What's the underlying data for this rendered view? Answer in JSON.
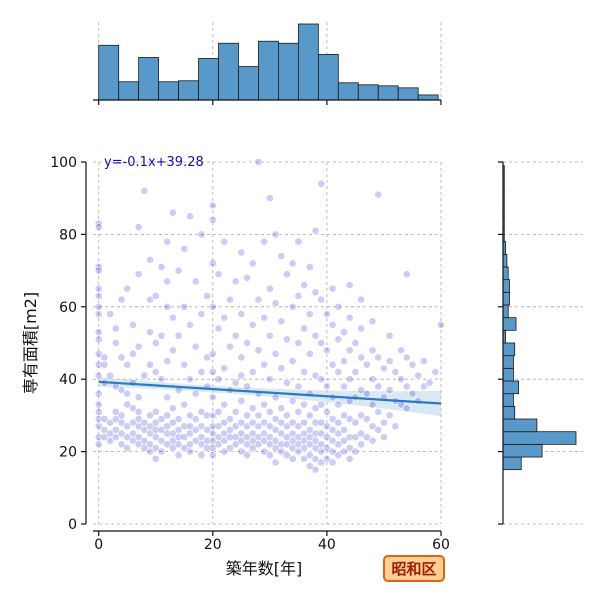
{
  "badge": {
    "label": "昭和区"
  },
  "colors": {
    "bar_fill": "#5899c9",
    "bar_edge": "#1a1a1a",
    "point_fill": "#0000cc",
    "regression_line": "#2b7bbf",
    "confidence_band": "#b9d6ea",
    "equation_text": "#1111aa",
    "badge_fill": "#ffd08f",
    "badge_border": "#e0601c",
    "badge_text": "#a01c0a"
  },
  "chart_data": {
    "type": "scatter",
    "xlabel": "築年数[年]",
    "ylabel": "専有面積[m2]",
    "xlim": [
      -1,
      60
    ],
    "ylim": [
      0,
      100
    ],
    "x_ticks": [
      "0",
      "20",
      "40",
      "60"
    ],
    "y_ticks": [
      "0",
      "20",
      "40",
      "60",
      "80",
      "100"
    ],
    "grid": true,
    "regression": {
      "equation": "y=-0.1x+39.28",
      "slope": -0.1,
      "intercept": 39.28,
      "x_range": [
        0,
        60
      ]
    },
    "top_histogram": {
      "bin_edges": [
        0,
        3.5,
        7,
        10.5,
        14,
        17.5,
        21,
        24.5,
        28,
        31.5,
        35,
        38.5,
        42,
        45.5,
        49,
        52.5,
        56,
        59.5
      ],
      "counts": [
        54,
        18,
        42,
        18,
        19,
        41,
        56,
        33,
        58,
        56,
        75,
        45,
        17,
        15,
        14,
        12,
        5
      ]
    },
    "right_histogram": {
      "bin_edges": [
        15,
        18.5,
        22,
        25.5,
        29,
        32.5,
        36,
        39.5,
        43,
        46.5,
        50,
        53.5,
        57,
        60.5,
        64,
        67.5,
        71,
        74.5,
        78,
        81.5,
        85,
        88.5,
        92,
        95.5,
        99
      ],
      "counts": [
        14,
        30,
        56,
        26,
        9,
        8,
        12,
        8,
        8,
        9,
        2,
        10,
        4,
        5,
        5,
        4,
        3,
        2,
        1,
        1,
        1,
        1,
        1,
        1
      ]
    },
    "points": [
      [
        0,
        83
      ],
      [
        0,
        82
      ],
      [
        0,
        71
      ],
      [
        0,
        70
      ],
      [
        0,
        65
      ],
      [
        0,
        63
      ],
      [
        0,
        60
      ],
      [
        0,
        58
      ],
      [
        0,
        53
      ],
      [
        0,
        51
      ],
      [
        0,
        47
      ],
      [
        0,
        44
      ],
      [
        0,
        41
      ],
      [
        0,
        36
      ],
      [
        0,
        33
      ],
      [
        0,
        31
      ],
      [
        0,
        29
      ],
      [
        0,
        27
      ],
      [
        0,
        24
      ],
      [
        0,
        22
      ],
      [
        1,
        46
      ],
      [
        1,
        44
      ],
      [
        1,
        39
      ],
      [
        1,
        29
      ],
      [
        1,
        26
      ],
      [
        1,
        24
      ],
      [
        2,
        58
      ],
      [
        2,
        41
      ],
      [
        2,
        28
      ],
      [
        2,
        25
      ],
      [
        2,
        23
      ],
      [
        3,
        54
      ],
      [
        3,
        50
      ],
      [
        3,
        38
      ],
      [
        3,
        31
      ],
      [
        3,
        29
      ],
      [
        3,
        26
      ],
      [
        3,
        24
      ],
      [
        4,
        62
      ],
      [
        4,
        46
      ],
      [
        4,
        37
      ],
      [
        4,
        30
      ],
      [
        4,
        28
      ],
      [
        4,
        25
      ],
      [
        4,
        22
      ],
      [
        5,
        65
      ],
      [
        5,
        44
      ],
      [
        5,
        36
      ],
      [
        5,
        33
      ],
      [
        5,
        27
      ],
      [
        5,
        24
      ],
      [
        5,
        21
      ],
      [
        6,
        55
      ],
      [
        6,
        47
      ],
      [
        6,
        39
      ],
      [
        6,
        32
      ],
      [
        6,
        28
      ],
      [
        6,
        25
      ],
      [
        6,
        23
      ],
      [
        7,
        82
      ],
      [
        7,
        69
      ],
      [
        7,
        49
      ],
      [
        7,
        35
      ],
      [
        7,
        31
      ],
      [
        7,
        29
      ],
      [
        7,
        27
      ],
      [
        7,
        24
      ],
      [
        7,
        22
      ],
      [
        8,
        92
      ],
      [
        8,
        41
      ],
      [
        8,
        28
      ],
      [
        8,
        26
      ],
      [
        8,
        23
      ],
      [
        8,
        21
      ],
      [
        9,
        73
      ],
      [
        9,
        62
      ],
      [
        9,
        53
      ],
      [
        9,
        44
      ],
      [
        9,
        30
      ],
      [
        9,
        27
      ],
      [
        9,
        25
      ],
      [
        9,
        22
      ],
      [
        9,
        20
      ],
      [
        10,
        63
      ],
      [
        10,
        50
      ],
      [
        10,
        42
      ],
      [
        10,
        31
      ],
      [
        10,
        28
      ],
      [
        10,
        26
      ],
      [
        10,
        24
      ],
      [
        10,
        21
      ],
      [
        10,
        18
      ],
      [
        11,
        71
      ],
      [
        11,
        52
      ],
      [
        11,
        40
      ],
      [
        11,
        29
      ],
      [
        11,
        26
      ],
      [
        11,
        23
      ],
      [
        11,
        20
      ],
      [
        12,
        78
      ],
      [
        12,
        67
      ],
      [
        12,
        60
      ],
      [
        12,
        45
      ],
      [
        12,
        35
      ],
      [
        12,
        30
      ],
      [
        12,
        27
      ],
      [
        12,
        25
      ],
      [
        12,
        22
      ],
      [
        13,
        86
      ],
      [
        13,
        57
      ],
      [
        13,
        48
      ],
      [
        13,
        32
      ],
      [
        13,
        28
      ],
      [
        13,
        25
      ],
      [
        13,
        23
      ],
      [
        13,
        21
      ],
      [
        14,
        70
      ],
      [
        14,
        52
      ],
      [
        14,
        37
      ],
      [
        14,
        29
      ],
      [
        14,
        26
      ],
      [
        14,
        24
      ],
      [
        14,
        22
      ],
      [
        14,
        19
      ],
      [
        15,
        76
      ],
      [
        15,
        60
      ],
      [
        15,
        44
      ],
      [
        15,
        33
      ],
      [
        15,
        27
      ],
      [
        15,
        24
      ],
      [
        15,
        21
      ],
      [
        16,
        85
      ],
      [
        16,
        55
      ],
      [
        16,
        40
      ],
      [
        16,
        30
      ],
      [
        16,
        27
      ],
      [
        16,
        25
      ],
      [
        16,
        22
      ],
      [
        16,
        20
      ],
      [
        17,
        67
      ],
      [
        17,
        49
      ],
      [
        17,
        36
      ],
      [
        17,
        29
      ],
      [
        17,
        26
      ],
      [
        17,
        23
      ],
      [
        18,
        80
      ],
      [
        18,
        58
      ],
      [
        18,
        42
      ],
      [
        18,
        31
      ],
      [
        18,
        27
      ],
      [
        18,
        24
      ],
      [
        18,
        22
      ],
      [
        18,
        19
      ],
      [
        19,
        63
      ],
      [
        19,
        46
      ],
      [
        19,
        38
      ],
      [
        19,
        30
      ],
      [
        19,
        26
      ],
      [
        19,
        23
      ],
      [
        19,
        21
      ],
      [
        20,
        88
      ],
      [
        20,
        84
      ],
      [
        20,
        72
      ],
      [
        20,
        60
      ],
      [
        20,
        47
      ],
      [
        20,
        42
      ],
      [
        20,
        35
      ],
      [
        20,
        30
      ],
      [
        20,
        27
      ],
      [
        20,
        25
      ],
      [
        20,
        23
      ],
      [
        20,
        21
      ],
      [
        20,
        19
      ],
      [
        21,
        69
      ],
      [
        21,
        54
      ],
      [
        21,
        40
      ],
      [
        21,
        31
      ],
      [
        21,
        27
      ],
      [
        21,
        24
      ],
      [
        21,
        22
      ],
      [
        22,
        78
      ],
      [
        22,
        57
      ],
      [
        22,
        43
      ],
      [
        22,
        33
      ],
      [
        22,
        28
      ],
      [
        22,
        25
      ],
      [
        22,
        23
      ],
      [
        22,
        20
      ],
      [
        23,
        62
      ],
      [
        23,
        49
      ],
      [
        23,
        37
      ],
      [
        23,
        29
      ],
      [
        23,
        26
      ],
      [
        23,
        24
      ],
      [
        23,
        21
      ],
      [
        24,
        67
      ],
      [
        24,
        52
      ],
      [
        24,
        39
      ],
      [
        24,
        31
      ],
      [
        24,
        27
      ],
      [
        24,
        24
      ],
      [
        24,
        22
      ],
      [
        25,
        75
      ],
      [
        25,
        58
      ],
      [
        25,
        46
      ],
      [
        25,
        41
      ],
      [
        25,
        34
      ],
      [
        25,
        28
      ],
      [
        25,
        25
      ],
      [
        25,
        23
      ],
      [
        25,
        20
      ],
      [
        26,
        68
      ],
      [
        26,
        50
      ],
      [
        26,
        38
      ],
      [
        26,
        30
      ],
      [
        26,
        27
      ],
      [
        26,
        24
      ],
      [
        26,
        22
      ],
      [
        26,
        19
      ],
      [
        27,
        72
      ],
      [
        27,
        55
      ],
      [
        27,
        42
      ],
      [
        27,
        32
      ],
      [
        27,
        28
      ],
      [
        27,
        25
      ],
      [
        27,
        23
      ],
      [
        27,
        21
      ],
      [
        28,
        100
      ],
      [
        28,
        62
      ],
      [
        28,
        48
      ],
      [
        28,
        36
      ],
      [
        28,
        30
      ],
      [
        28,
        27
      ],
      [
        28,
        24
      ],
      [
        28,
        22
      ],
      [
        29,
        78
      ],
      [
        29,
        57
      ],
      [
        29,
        44
      ],
      [
        29,
        33
      ],
      [
        29,
        28
      ],
      [
        29,
        25
      ],
      [
        29,
        23
      ],
      [
        29,
        20
      ],
      [
        30,
        90
      ],
      [
        30,
        65
      ],
      [
        30,
        52
      ],
      [
        30,
        40
      ],
      [
        30,
        31
      ],
      [
        30,
        27
      ],
      [
        30,
        24
      ],
      [
        30,
        22
      ],
      [
        30,
        19
      ],
      [
        31,
        80
      ],
      [
        31,
        61
      ],
      [
        31,
        47
      ],
      [
        31,
        35
      ],
      [
        31,
        29
      ],
      [
        31,
        26
      ],
      [
        31,
        23
      ],
      [
        31,
        21
      ],
      [
        31,
        17
      ],
      [
        32,
        74
      ],
      [
        32,
        56
      ],
      [
        32,
        43
      ],
      [
        32,
        32
      ],
      [
        32,
        28
      ],
      [
        32,
        25
      ],
      [
        32,
        22
      ],
      [
        32,
        20
      ],
      [
        33,
        69
      ],
      [
        33,
        51
      ],
      [
        33,
        39
      ],
      [
        33,
        30
      ],
      [
        33,
        27
      ],
      [
        33,
        24
      ],
      [
        33,
        22
      ],
      [
        33,
        19
      ],
      [
        34,
        72
      ],
      [
        34,
        60
      ],
      [
        34,
        45
      ],
      [
        34,
        34
      ],
      [
        34,
        28
      ],
      [
        34,
        25
      ],
      [
        34,
        23
      ],
      [
        34,
        21
      ],
      [
        34,
        18
      ],
      [
        35,
        78
      ],
      [
        35,
        63
      ],
      [
        35,
        50
      ],
      [
        35,
        38
      ],
      [
        35,
        31
      ],
      [
        35,
        27
      ],
      [
        35,
        24
      ],
      [
        35,
        22
      ],
      [
        35,
        20
      ],
      [
        36,
        66
      ],
      [
        36,
        54
      ],
      [
        36,
        42
      ],
      [
        36,
        33
      ],
      [
        36,
        28
      ],
      [
        36,
        25
      ],
      [
        36,
        23
      ],
      [
        36,
        21
      ],
      [
        36,
        18
      ],
      [
        37,
        71
      ],
      [
        37,
        58
      ],
      [
        37,
        47
      ],
      [
        37,
        36
      ],
      [
        37,
        30
      ],
      [
        37,
        26
      ],
      [
        37,
        24
      ],
      [
        37,
        22
      ],
      [
        37,
        19
      ],
      [
        37,
        16
      ],
      [
        38,
        81
      ],
      [
        38,
        64
      ],
      [
        38,
        52
      ],
      [
        38,
        41
      ],
      [
        38,
        32
      ],
      [
        38,
        28
      ],
      [
        38,
        25
      ],
      [
        38,
        23
      ],
      [
        38,
        21
      ],
      [
        38,
        18
      ],
      [
        38,
        15
      ],
      [
        39,
        94
      ],
      [
        39,
        62
      ],
      [
        39,
        50
      ],
      [
        39,
        40
      ],
      [
        39,
        33
      ],
      [
        39,
        28
      ],
      [
        39,
        25
      ],
      [
        39,
        22
      ],
      [
        39,
        20
      ],
      [
        39,
        17
      ],
      [
        40,
        58
      ],
      [
        40,
        48
      ],
      [
        40,
        38
      ],
      [
        40,
        31
      ],
      [
        40,
        27
      ],
      [
        40,
        24
      ],
      [
        40,
        21
      ],
      [
        40,
        18
      ],
      [
        41,
        65
      ],
      [
        41,
        55
      ],
      [
        41,
        44
      ],
      [
        41,
        35
      ],
      [
        41,
        29
      ],
      [
        41,
        26
      ],
      [
        41,
        23
      ],
      [
        41,
        20
      ],
      [
        41,
        17
      ],
      [
        42,
        60
      ],
      [
        42,
        51
      ],
      [
        42,
        42
      ],
      [
        42,
        33
      ],
      [
        42,
        28
      ],
      [
        42,
        25
      ],
      [
        42,
        22
      ],
      [
        42,
        19
      ],
      [
        43,
        53
      ],
      [
        43,
        45
      ],
      [
        43,
        38
      ],
      [
        43,
        30
      ],
      [
        43,
        26
      ],
      [
        43,
        23
      ],
      [
        43,
        20
      ],
      [
        44,
        66
      ],
      [
        44,
        57
      ],
      [
        44,
        48
      ],
      [
        44,
        40
      ],
      [
        44,
        34
      ],
      [
        44,
        29
      ],
      [
        44,
        24
      ],
      [
        44,
        21
      ],
      [
        44,
        18
      ],
      [
        45,
        50
      ],
      [
        45,
        42
      ],
      [
        45,
        35
      ],
      [
        45,
        28
      ],
      [
        45,
        24
      ],
      [
        45,
        20
      ],
      [
        46,
        62
      ],
      [
        46,
        54
      ],
      [
        46,
        46
      ],
      [
        46,
        37
      ],
      [
        46,
        30
      ],
      [
        46,
        25
      ],
      [
        46,
        22
      ],
      [
        47,
        44
      ],
      [
        47,
        36
      ],
      [
        47,
        29
      ],
      [
        47,
        24
      ],
      [
        48,
        56
      ],
      [
        48,
        48
      ],
      [
        48,
        40
      ],
      [
        48,
        33
      ],
      [
        48,
        27
      ],
      [
        48,
        23
      ],
      [
        49,
        91
      ],
      [
        49,
        46
      ],
      [
        49,
        38
      ],
      [
        49,
        31
      ],
      [
        49,
        26
      ],
      [
        50,
        43
      ],
      [
        50,
        35
      ],
      [
        50,
        28
      ],
      [
        50,
        24
      ],
      [
        51,
        52
      ],
      [
        51,
        45
      ],
      [
        51,
        37
      ],
      [
        51,
        30
      ],
      [
        52,
        42
      ],
      [
        52,
        34
      ],
      [
        52,
        27
      ],
      [
        53,
        48
      ],
      [
        53,
        40
      ],
      [
        53,
        33
      ],
      [
        54,
        69
      ],
      [
        54,
        46
      ],
      [
        54,
        38
      ],
      [
        54,
        32
      ],
      [
        55,
        44
      ],
      [
        55,
        36
      ],
      [
        56,
        41
      ],
      [
        56,
        34
      ],
      [
        57,
        45
      ],
      [
        57,
        38
      ],
      [
        58,
        39
      ],
      [
        59,
        42
      ],
      [
        60,
        55
      ]
    ]
  }
}
